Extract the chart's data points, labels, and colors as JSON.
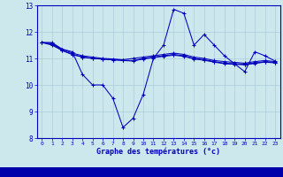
{
  "xlabel": "Graphe des températures (°c)",
  "background_color": "#cce8ed",
  "grid_color": "#aaccdd",
  "line_color": "#0000bb",
  "bottom_bar_color": "#0000aa",
  "xlim": [
    -0.5,
    23.5
  ],
  "ylim": [
    8,
    13
  ],
  "yticks": [
    8,
    9,
    10,
    11,
    12,
    13
  ],
  "xticks": [
    0,
    1,
    2,
    3,
    4,
    5,
    6,
    7,
    8,
    9,
    10,
    11,
    12,
    13,
    14,
    15,
    16,
    17,
    18,
    19,
    20,
    21,
    22,
    23
  ],
  "series": [
    [
      11.6,
      11.6,
      11.35,
      11.25,
      10.4,
      10.0,
      10.0,
      9.5,
      8.4,
      8.75,
      9.65,
      11.0,
      11.5,
      12.85,
      12.7,
      11.5,
      11.9,
      11.5,
      11.1,
      10.8,
      10.5,
      11.25,
      11.1,
      10.9
    ],
    [
      11.6,
      11.55,
      11.35,
      11.2,
      11.1,
      11.05,
      11.0,
      10.98,
      10.95,
      11.0,
      11.05,
      11.1,
      11.15,
      11.2,
      11.15,
      11.05,
      11.0,
      10.92,
      10.88,
      10.85,
      10.82,
      10.88,
      10.92,
      10.88
    ],
    [
      11.6,
      11.55,
      11.3,
      11.15,
      11.05,
      11.0,
      10.98,
      10.95,
      10.93,
      10.92,
      11.0,
      11.05,
      11.1,
      11.15,
      11.1,
      11.0,
      10.95,
      10.88,
      10.82,
      10.8,
      10.78,
      10.83,
      10.88,
      10.85
    ],
    [
      11.6,
      11.5,
      11.3,
      11.15,
      11.05,
      11.0,
      10.97,
      10.95,
      10.92,
      10.9,
      10.98,
      11.03,
      11.08,
      11.12,
      11.08,
      10.98,
      10.93,
      10.86,
      10.8,
      10.78,
      10.76,
      10.81,
      10.86,
      10.83
    ]
  ]
}
